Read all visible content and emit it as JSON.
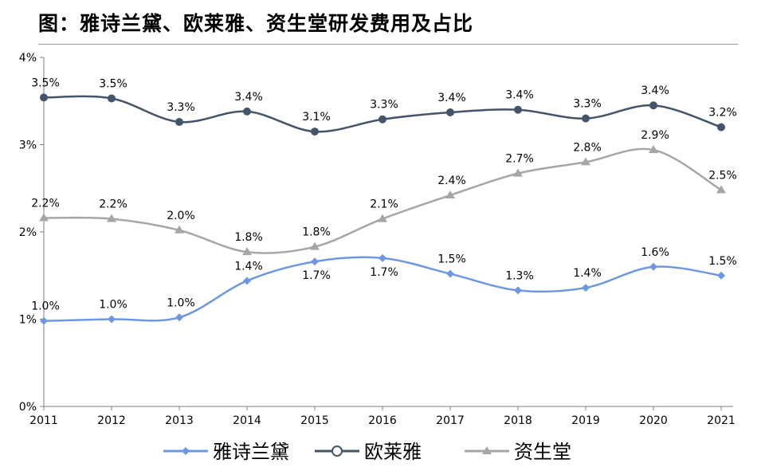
{
  "title": "图：雅诗兰黛、欧莱雅、资生堂研发费用及占比",
  "chart_data": {
    "type": "line",
    "categories": [
      "2011",
      "2012",
      "2013",
      "2014",
      "2015",
      "2016",
      "2017",
      "2018",
      "2019",
      "2020",
      "2021"
    ],
    "ylim": [
      0,
      4
    ],
    "yticks": [
      "0%",
      "1%",
      "2%",
      "3%",
      "4%"
    ],
    "grid": false,
    "legend_position": "bottom",
    "series": [
      {
        "name": "雅诗兰黛",
        "color": "#6d98e1",
        "marker": "diamond",
        "values": [
          0.98,
          1.0,
          1.02,
          1.44,
          1.66,
          1.7,
          1.52,
          1.33,
          1.36,
          1.6,
          1.5
        ],
        "labels": [
          "1.0%",
          "1.0%",
          "1.0%",
          "1.4%",
          "1.7%",
          "1.7%",
          "1.5%",
          "1.3%",
          "1.4%",
          "1.6%",
          "1.5%"
        ]
      },
      {
        "name": "欧莱雅",
        "color": "#44546a",
        "marker": "circle",
        "values": [
          3.54,
          3.53,
          3.26,
          3.38,
          3.15,
          3.29,
          3.37,
          3.4,
          3.3,
          3.45,
          3.2
        ],
        "labels": [
          "3.5%",
          "3.5%",
          "3.3%",
          "3.4%",
          "3.1%",
          "3.3%",
          "3.4%",
          "3.4%",
          "3.3%",
          "3.4%",
          "3.2%"
        ]
      },
      {
        "name": "资生堂",
        "color": "#a6a6a6",
        "marker": "triangle",
        "values": [
          2.16,
          2.15,
          2.02,
          1.77,
          1.83,
          2.15,
          2.42,
          2.67,
          2.8,
          2.94,
          2.48
        ],
        "labels": [
          "2.2%",
          "2.2%",
          "2.0%",
          "1.8%",
          "1.8%",
          "2.1%",
          "2.4%",
          "2.7%",
          "2.8%",
          "2.9%",
          "2.5%"
        ]
      }
    ]
  }
}
